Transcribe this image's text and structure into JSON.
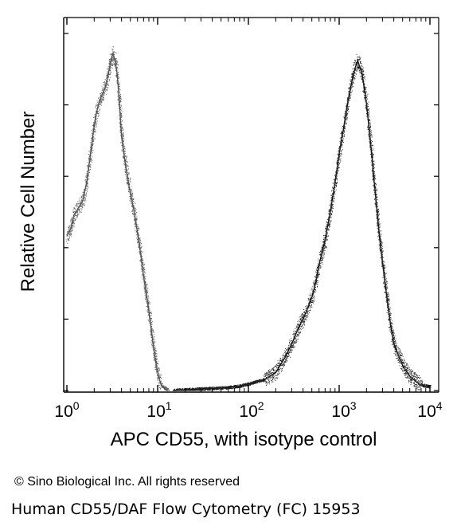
{
  "chart_data": {
    "type": "area",
    "title": "",
    "xlabel": "APC CD55, with isotype control",
    "ylabel": "Relative Cell Number",
    "x_scale": "log",
    "xlim": [
      1,
      10000
    ],
    "ylim": [
      0,
      100
    ],
    "x_tick_labels": [
      {
        "base": "10",
        "exp": "0"
      },
      {
        "base": "10",
        "exp": "1"
      },
      {
        "base": "10",
        "exp": "2"
      },
      {
        "base": "10",
        "exp": "3"
      },
      {
        "base": "10",
        "exp": "4"
      }
    ],
    "grid": false,
    "legend": "none",
    "series": [
      {
        "x": [
          1.0,
          1.1,
          1.2,
          1.35,
          1.5,
          1.65,
          1.8,
          1.95,
          2.1,
          2.25,
          2.4,
          2.6,
          2.8,
          3.0,
          3.2,
          3.4,
          3.6,
          3.8,
          4.0,
          4.3,
          4.6,
          5.0,
          5.5,
          6.0,
          6.5,
          7.0,
          7.5,
          8.0,
          8.5,
          9.0,
          9.5,
          10.0,
          10.5,
          11.0,
          12.0,
          13.0
        ],
        "y": [
          43,
          45,
          49,
          51,
          53,
          58,
          65,
          72,
          77,
          80,
          82,
          84,
          87,
          91,
          94,
          92,
          88,
          80,
          71,
          65,
          60,
          55,
          50,
          44,
          38,
          32,
          27,
          22,
          17,
          12,
          8,
          5,
          3,
          1.5,
          0.6,
          0
        ],
        "color": "#555555"
      },
      {
        "x": [
          15,
          30,
          60,
          80,
          100,
          150,
          200,
          250,
          300,
          350,
          400,
          450,
          500,
          550,
          600,
          700,
          800,
          900,
          1000,
          1100,
          1200,
          1300,
          1400,
          1500,
          1600,
          1800,
          2000,
          2200,
          2500,
          2800,
          3200,
          3600,
          4000,
          5000,
          6000,
          7000,
          8000,
          10000
        ],
        "y": [
          0,
          0.4,
          0.8,
          1.2,
          1.8,
          3,
          5,
          9,
          13,
          17,
          20,
          23,
          26,
          30,
          35,
          42,
          50,
          58,
          66,
          72,
          78,
          83,
          87,
          90,
          92,
          88,
          80,
          70,
          55,
          42,
          30,
          20,
          13,
          7,
          4,
          2.5,
          1.5,
          1
        ],
        "color": "#1a1a1a"
      }
    ]
  },
  "footer": {
    "copyright": "© Sino Biological Inc. All rights reserved",
    "caption": "Human CD55/DAF Flow Cytometry (FC) 15953"
  }
}
